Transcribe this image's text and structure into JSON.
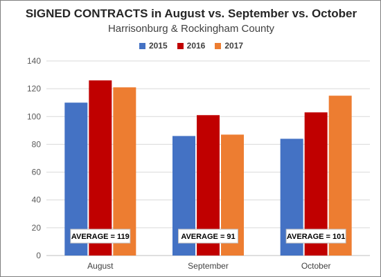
{
  "chart_data": {
    "type": "bar",
    "title": "SIGNED CONTRACTS in August vs. September vs. October",
    "subtitle": "Harrisonburg & Rockingham County",
    "categories": [
      "August",
      "September",
      "October"
    ],
    "series": [
      {
        "name": "2015",
        "color": "#4472c4",
        "values": [
          110,
          86,
          84
        ]
      },
      {
        "name": "2016",
        "color": "#c00000",
        "values": [
          126,
          101,
          103
        ]
      },
      {
        "name": "2017",
        "color": "#ed7d31",
        "values": [
          121,
          87,
          115
        ]
      }
    ],
    "annotations": [
      "AVERAGE = 119",
      "AVERAGE = 91",
      "AVERAGE = 101"
    ],
    "ylim": [
      0,
      140
    ],
    "yticks": [
      0,
      20,
      40,
      60,
      80,
      100,
      120,
      140
    ],
    "grid": true,
    "legend_position": "top",
    "xlabel": "",
    "ylabel": ""
  }
}
